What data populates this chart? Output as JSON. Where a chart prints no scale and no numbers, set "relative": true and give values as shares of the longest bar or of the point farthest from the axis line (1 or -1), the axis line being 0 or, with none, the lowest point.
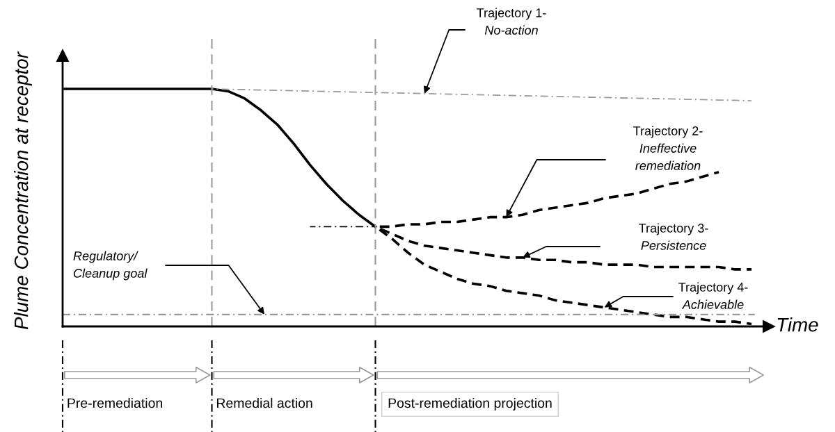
{
  "chart_data": {
    "type": "line",
    "relative": true,
    "xlabel": "Time",
    "ylabel": "Plume Concentration at receptor",
    "categories": [
      null,
      null,
      null,
      null,
      null,
      null,
      null,
      null,
      null,
      null,
      null,
      null,
      null,
      null,
      null,
      null,
      null,
      null,
      null,
      null,
      null,
      null,
      null,
      null,
      null,
      null,
      null,
      null,
      null,
      null,
      null,
      null,
      null,
      null,
      null,
      null,
      null,
      null,
      null,
      null,
      null,
      null,
      null
    ],
    "series": [
      {
        "color": "#000000",
        "line_style": "solid",
        "values": [
          1,
          1,
          1,
          1,
          1,
          1,
          1,
          1,
          1,
          1,
          0.99,
          0.96,
          0.91,
          0.85,
          0.77,
          0.68,
          0.6,
          0.53,
          0.47,
          0.42,
          null,
          null,
          null,
          null,
          null,
          null,
          null,
          null,
          null,
          null,
          null,
          null,
          null,
          null,
          null,
          null,
          null,
          null,
          null,
          null,
          null,
          null,
          null
        ]
      },
      {
        "name": "Trajectory 1-\nNo-action",
        "color": "#999999",
        "line_style": "dashdot",
        "values": [
          null,
          null,
          null,
          null,
          null,
          null,
          null,
          null,
          null,
          1.0,
          0.998,
          0.997,
          0.995,
          0.994,
          0.992,
          0.991,
          0.989,
          0.988,
          0.986,
          0.985,
          0.983,
          0.982,
          0.98,
          0.979,
          0.977,
          0.976,
          0.974,
          0.973,
          0.971,
          0.97,
          0.968,
          0.967,
          0.965,
          0.964,
          0.962,
          0.961,
          0.959,
          0.958,
          0.956,
          0.955,
          0.953,
          0.952,
          0.95
        ]
      },
      {
        "name": "Trajectory 2-\nIneffective\nremediation",
        "color": "#000000",
        "line_style": "dashed",
        "values": [
          null,
          null,
          null,
          null,
          null,
          null,
          null,
          null,
          null,
          null,
          null,
          null,
          null,
          null,
          null,
          null,
          null,
          null,
          null,
          0.42,
          0.42,
          0.43,
          0.43,
          0.44,
          0.44,
          0.45,
          0.46,
          0.46,
          0.47,
          0.49,
          0.5,
          0.51,
          0.52,
          0.54,
          0.55,
          0.56,
          0.58,
          0.6,
          0.61,
          0.63,
          0.65,
          null,
          null
        ]
      },
      {
        "name": "Trajectory 3-\nPersistence",
        "color": "#000000",
        "line_style": "dashed",
        "values": [
          null,
          null,
          null,
          null,
          null,
          null,
          null,
          null,
          null,
          null,
          null,
          null,
          null,
          null,
          null,
          null,
          null,
          null,
          null,
          0.42,
          0.39,
          0.36,
          0.34,
          0.33,
          0.32,
          0.31,
          0.3,
          0.29,
          0.29,
          0.28,
          0.28,
          0.27,
          0.27,
          0.26,
          0.26,
          0.26,
          0.25,
          0.25,
          0.25,
          0.25,
          0.25,
          0.24,
          0.24
        ]
      },
      {
        "name": "Trajectory 4-\nAchievable",
        "color": "#000000",
        "line_style": "dashed",
        "values": [
          null,
          null,
          null,
          null,
          null,
          null,
          null,
          null,
          null,
          null,
          null,
          null,
          null,
          null,
          null,
          null,
          null,
          null,
          null,
          0.42,
          0.37,
          0.31,
          0.26,
          0.23,
          0.2,
          0.18,
          0.17,
          0.15,
          0.14,
          0.13,
          0.11,
          0.1,
          0.09,
          0.08,
          0.07,
          0.06,
          0.05,
          0.04,
          0.04,
          0.03,
          0.02,
          0.02,
          0.01
        ]
      },
      {
        "color": "#000000",
        "line_style": "dashdot",
        "values": [
          null,
          null,
          null,
          null,
          null,
          null,
          null,
          null,
          null,
          null,
          null,
          null,
          null,
          null,
          null,
          0.42,
          0.42,
          0.42,
          0.42,
          0.42,
          null,
          null,
          null,
          null,
          null,
          null,
          null,
          null,
          null,
          null,
          null,
          null,
          null,
          null,
          null,
          null,
          null,
          null,
          null,
          null,
          null,
          null,
          null
        ]
      }
    ],
    "ref_lines": [
      {
        "axis": "y",
        "value": 0.05,
        "label": "Regulatory/\nCleanup goal",
        "color": "#999999",
        "line_style": "dashdot"
      }
    ],
    "annotations": [
      "Pre-remediation",
      "Remedial action",
      "Post-remediation projection"
    ],
    "grid": false,
    "legend": false
  }
}
